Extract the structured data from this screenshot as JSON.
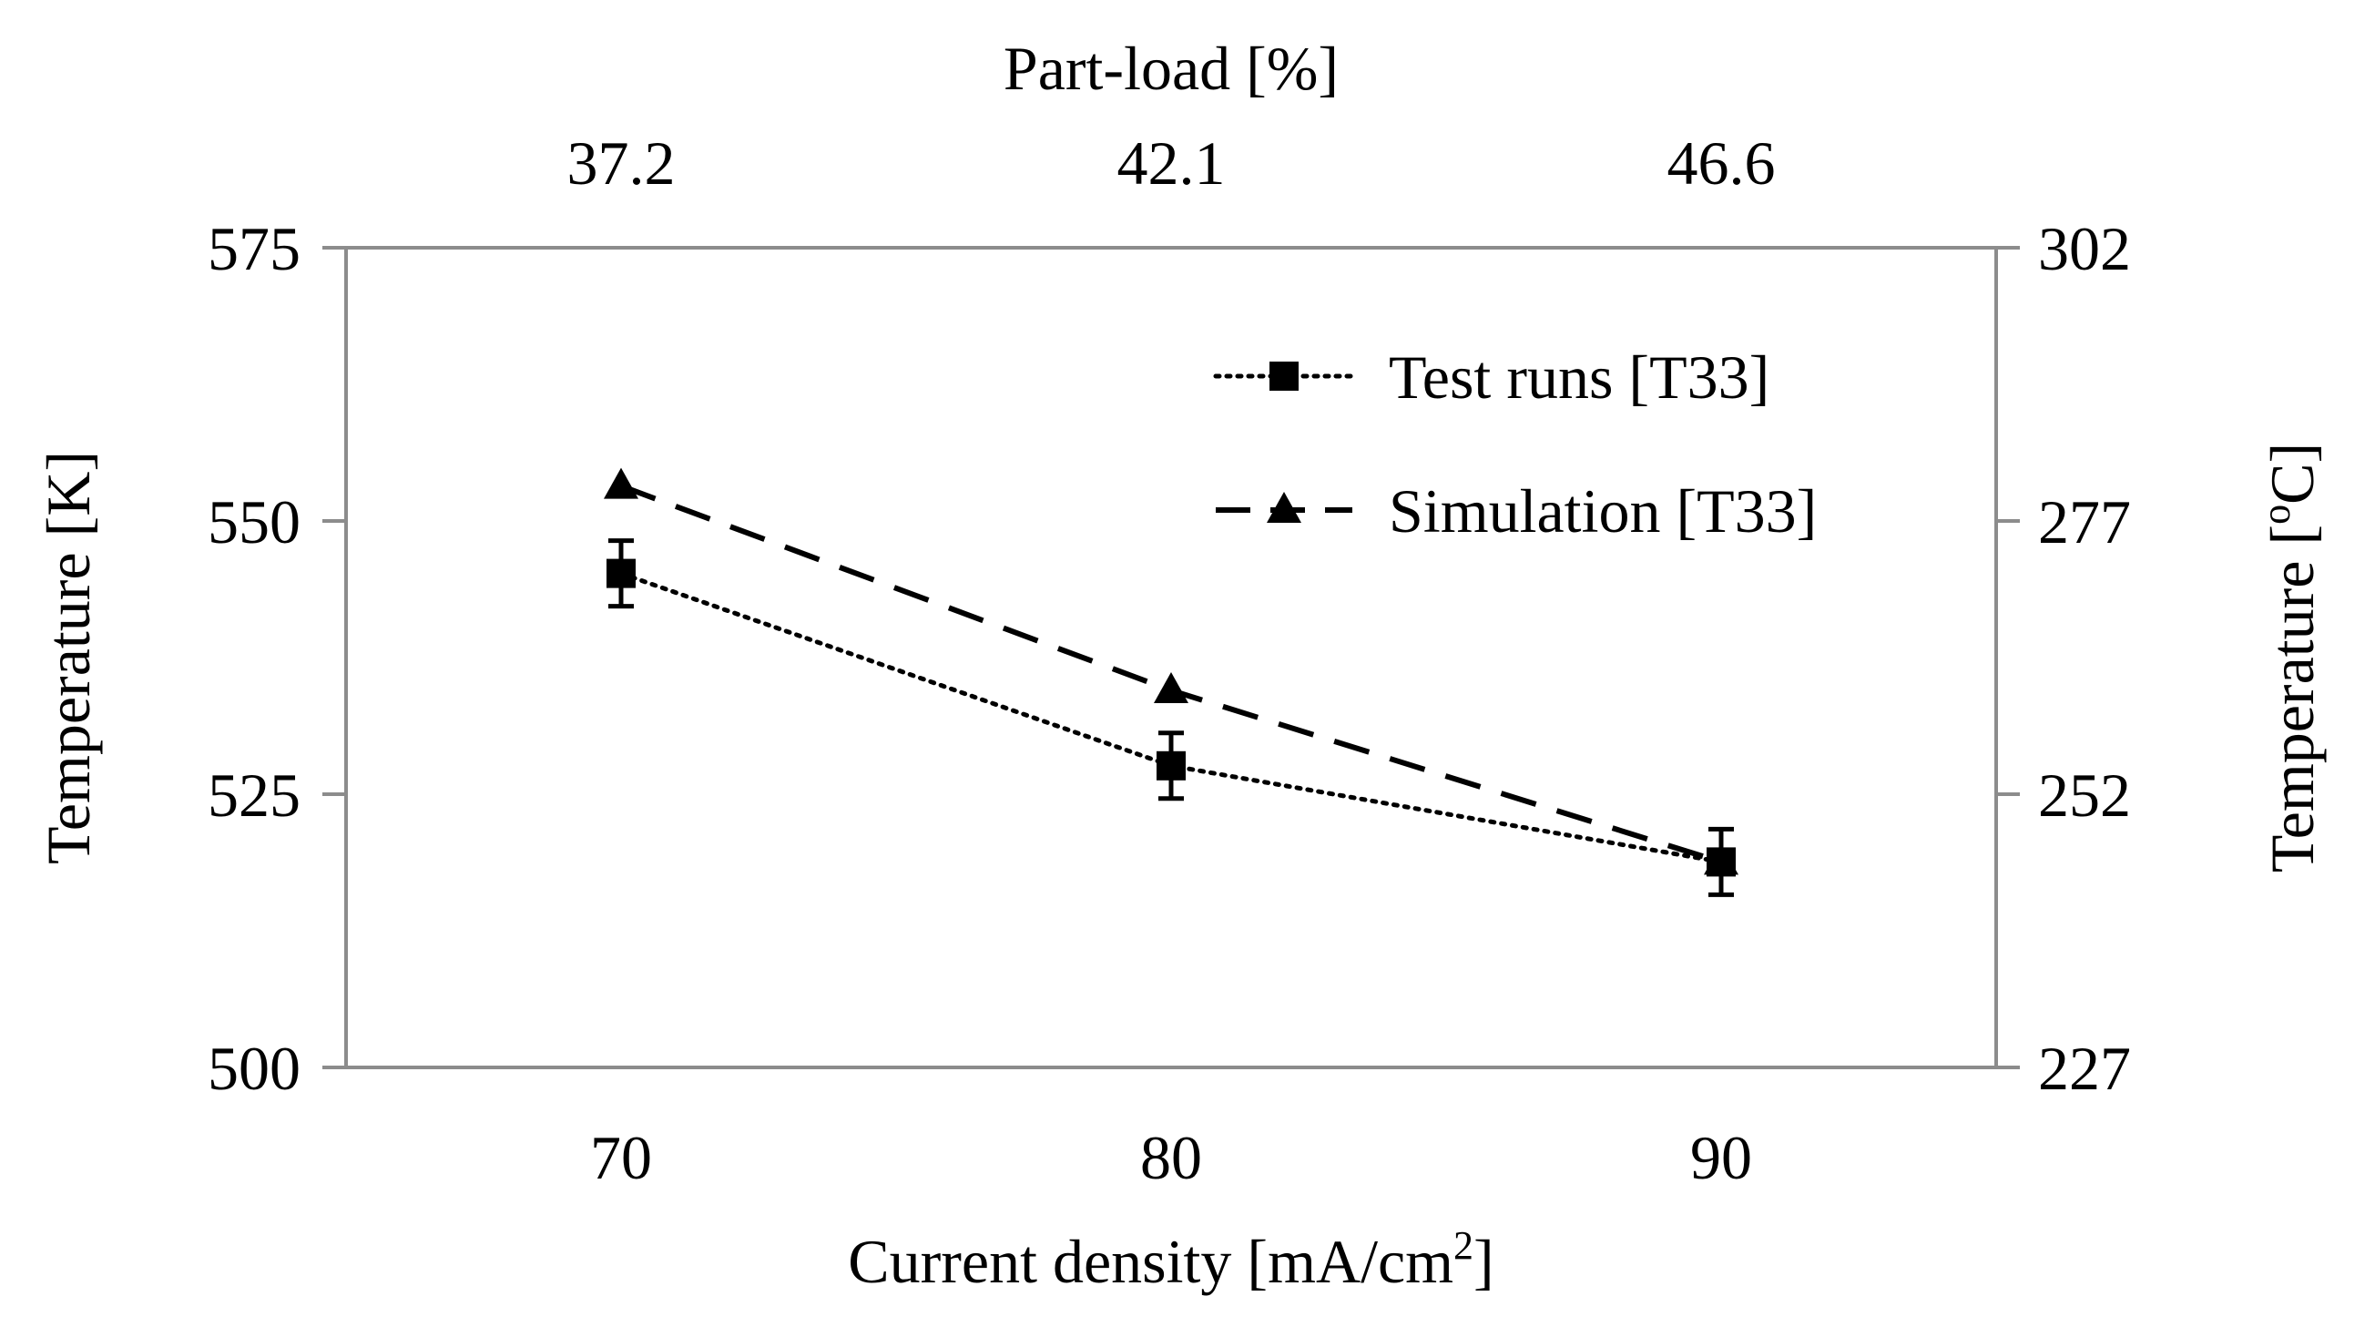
{
  "chart_data": {
    "type": "line",
    "title": "",
    "xlabel": "Current density [mA/cm",
    "xlabel_sup": "2",
    "xlabel_end": "]",
    "ylabel": "Temperature [K]",
    "ylabel_right_prefix": "Temperature [",
    "ylabel_right_sup": "o",
    "ylabel_right_end": "C]",
    "top_label": "Part-load [%]",
    "x": [
      70,
      80,
      90
    ],
    "x_ticks": [
      "70",
      "80",
      "90"
    ],
    "xlim": [
      65,
      95
    ],
    "top_ticks": [
      "37.2",
      "42.1",
      "46.6"
    ],
    "ylim": [
      500,
      575
    ],
    "y_ticks": [
      "500",
      "525",
      "550",
      "575"
    ],
    "y_right_ticks": [
      "227",
      "252",
      "277",
      "302"
    ],
    "series": [
      {
        "name": "Test runs [T33]",
        "values": [
          545.2,
          527.6,
          518.8
        ],
        "error": [
          3.0,
          3.0,
          3.0
        ],
        "marker": "square",
        "line": "dotted"
      },
      {
        "name": "Simulation [T33]",
        "values": [
          553.2,
          534.5,
          518.8
        ],
        "marker": "triangle",
        "line": "dashed"
      }
    ],
    "legend": "top-right",
    "grid": false,
    "colors": {
      "axis": "#8c8c8c",
      "ink": "#000000"
    }
  }
}
